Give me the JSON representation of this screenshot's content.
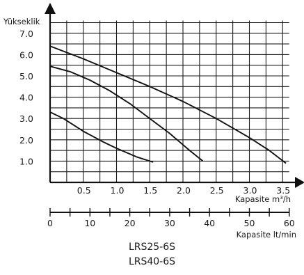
{
  "chart_data": {
    "type": "line",
    "ylabel": "Yükseklik",
    "ylim": [
      0,
      7.8
    ],
    "yticks": [
      1.0,
      2.0,
      3.0,
      4.0,
      5.0,
      6.0,
      7.0
    ],
    "ytick_labels": [
      "1.0",
      "2.0",
      "3.0",
      "4.0",
      "5.0",
      "6.0",
      "7.0"
    ],
    "xlabel": "Kapasite m³/h",
    "xlim": [
      0,
      3.65
    ],
    "xticks": [
      0.5,
      1.0,
      1.5,
      2.0,
      2.5,
      3.0,
      3.5
    ],
    "xtick_labels": [
      "0.5",
      "1.0",
      "1.5",
      "2.0",
      "2.5",
      "3.0",
      "3.5"
    ],
    "secondary_xaxis": {
      "label": "Kapasite lt/min",
      "ticks": [
        0,
        10,
        20,
        30,
        40,
        50,
        60
      ],
      "tick_labels": [
        "0",
        "10",
        "20",
        "30",
        "40",
        "50",
        "60"
      ]
    },
    "grid": true,
    "series": [
      {
        "x": [
          0,
          0.2,
          0.5,
          0.8,
          1.0,
          1.3
        ],
        "y": [
          3.3,
          3.0,
          2.4,
          1.9,
          1.6,
          1.2
        ]
      },
      {
        "x": [
          1.3,
          1.55
        ],
        "y": [
          1.2,
          0.95
        ]
      },
      {
        "x": [
          0,
          0.3,
          0.6,
          0.9,
          1.2,
          1.5,
          1.8,
          2.1,
          2.3
        ],
        "y": [
          5.45,
          5.2,
          4.8,
          4.3,
          3.7,
          3.0,
          2.3,
          1.5,
          1.0
        ]
      },
      {
        "x": [
          0,
          0.5,
          1.0,
          1.5,
          2.0,
          2.5,
          3.0,
          3.3,
          3.55
        ],
        "y": [
          6.4,
          5.8,
          5.15,
          4.5,
          3.8,
          3.0,
          2.1,
          1.5,
          0.9
        ]
      }
    ]
  },
  "models": [
    "LRS25-6S",
    "LRS40-6S"
  ]
}
